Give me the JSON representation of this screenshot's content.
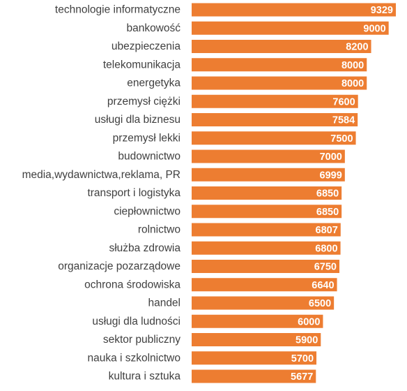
{
  "chart_data": {
    "type": "bar",
    "orientation": "horizontal",
    "title": "",
    "xlabel": "",
    "ylabel": "",
    "categories": [
      "technologie informatyczne",
      "bankowość",
      "ubezpieczenia",
      "telekomunikacja",
      "energetyka",
      "przemysł ciężki",
      "usługi dla biznesu",
      "przemysł lekki",
      "budownictwo",
      "media,wydawnictwa,reklama, PR",
      "transport i logistyka",
      "ciepłownictwo",
      "rolnictwo",
      "służba zdrowia",
      "organizacje pozarządowe",
      "ochrona środowiska",
      "handel",
      "usługi dla ludności",
      "sektor publiczny",
      "nauka i szkolnictwo",
      "kultura i sztuka"
    ],
    "values": [
      9329,
      9000,
      8200,
      8000,
      8000,
      7600,
      7584,
      7500,
      7000,
      6999,
      6850,
      6850,
      6807,
      6800,
      6750,
      6640,
      6500,
      6000,
      5900,
      5700,
      5677
    ],
    "xlim": [
      0,
      9329
    ],
    "grid": false,
    "legend": "none",
    "data_labels": "inside-end",
    "colors": {
      "bar": "#ED7D31",
      "category_text": "#404040",
      "value_text": "#FFFFFF",
      "background": "#FFFFFF"
    }
  }
}
